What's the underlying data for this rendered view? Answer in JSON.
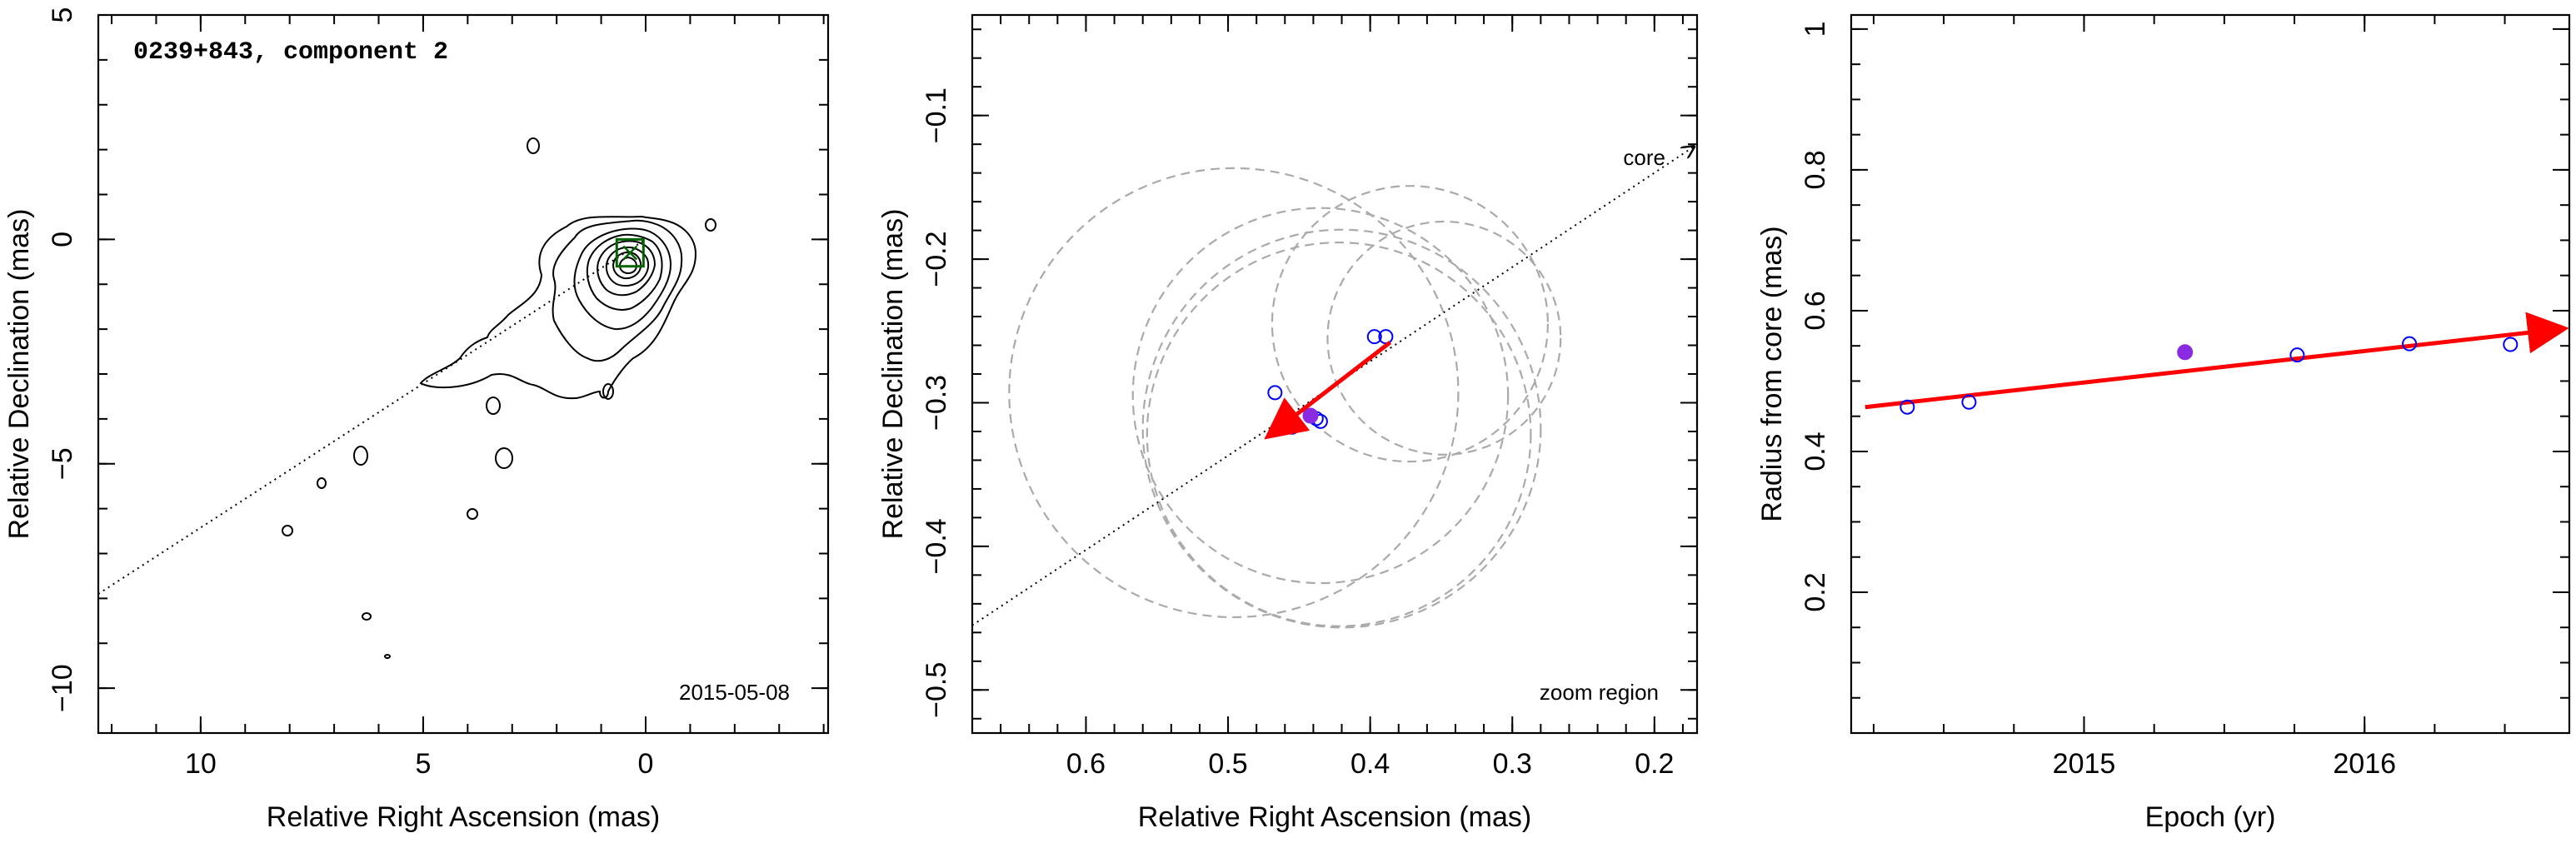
{
  "colors": {
    "arrow": "#ff0000",
    "open_marker": "#0000ff",
    "filled_marker": "#8a2be2",
    "circle": "#aaaaaa",
    "box": "#006400"
  },
  "chart_data": [
    {
      "type": "contour",
      "title": "0239+843, component 2",
      "date_label": "2015-05-08",
      "xlabel": "Relative Right Ascension (mas)",
      "ylabel": "Relative Declination (mas)",
      "xlim": [
        12.3,
        -4.1
      ],
      "ylim": [
        -11,
        5
      ],
      "xticks": [
        10,
        5,
        0
      ],
      "xtick_labels": [
        "10",
        "5",
        "0"
      ],
      "yticks": [
        5,
        0,
        -5,
        -10
      ],
      "ytick_labels": [
        "5",
        "0",
        "−5",
        "−10"
      ],
      "component_box": {
        "x": 0.35,
        "y": -0.3,
        "size": 0.6
      },
      "jet_axis": {
        "x1": 12.3,
        "y1": -7.9,
        "x2": 0.0,
        "y2": 0.0
      }
    },
    {
      "type": "scatter",
      "annotation_core": "core",
      "annotation_region": "zoom region",
      "xlabel": "Relative Right Ascension (mas)",
      "ylabel": "Relative Declination (mas)",
      "xlim": [
        0.68,
        0.17
      ],
      "ylim": [
        -0.53,
        -0.03
      ],
      "xticks": [
        0.6,
        0.5,
        0.4,
        0.3,
        0.2
      ],
      "xtick_labels": [
        "0.6",
        "0.5",
        "0.4",
        "0.3",
        "0.2"
      ],
      "yticks": [
        -0.1,
        -0.2,
        -0.3,
        -0.4,
        -0.5
      ],
      "ytick_labels": [
        "−0.1",
        "−0.2",
        "−0.3",
        "−0.4",
        "−0.5"
      ],
      "open_points": [
        {
          "x": 0.467,
          "y": -0.293
        },
        {
          "x": 0.455,
          "y": -0.317
        },
        {
          "x": 0.438,
          "y": -0.311
        },
        {
          "x": 0.435,
          "y": -0.313
        },
        {
          "x": 0.397,
          "y": -0.254
        },
        {
          "x": 0.389,
          "y": -0.254
        }
      ],
      "filled_points": [
        {
          "x": 0.442,
          "y": -0.309
        }
      ],
      "circles": [
        {
          "x": 0.496,
          "y": -0.293,
          "r": 0.158
        },
        {
          "x": 0.435,
          "y": -0.295,
          "r": 0.132
        },
        {
          "x": 0.42,
          "y": -0.318,
          "r": 0.14
        },
        {
          "x": 0.422,
          "y": -0.322,
          "r": 0.135
        },
        {
          "x": 0.372,
          "y": -0.245,
          "r": 0.097
        },
        {
          "x": 0.348,
          "y": -0.255,
          "r": 0.082
        }
      ],
      "motion_arrow": {
        "x1": 0.386,
        "y1": -0.258,
        "x2": 0.47,
        "y2": -0.322
      },
      "core_direction": {
        "x1": 0.68,
        "y1": -0.455,
        "x2": 0.17,
        "y2": -0.12
      }
    },
    {
      "type": "scatter",
      "xlabel": "Epoch (yr)",
      "ylabel": "Radius from core (mas)",
      "xlim": [
        2014.17,
        2016.73
      ],
      "ylim": [
        0.0,
        1.02
      ],
      "xticks": [
        2015,
        2016
      ],
      "xtick_labels": [
        "2015",
        "2016"
      ],
      "yticks": [
        0.2,
        0.4,
        0.6,
        0.8,
        1.0
      ],
      "ytick_labels": [
        "0.2",
        "0.4",
        "0.6",
        "0.8",
        "1"
      ],
      "open_points": [
        {
          "x": 2014.37,
          "y": 0.463
        },
        {
          "x": 2014.59,
          "y": 0.47
        },
        {
          "x": 2015.76,
          "y": 0.537
        },
        {
          "x": 2016.16,
          "y": 0.553
        },
        {
          "x": 2016.52,
          "y": 0.552
        }
      ],
      "filled_points": [
        {
          "x": 2015.36,
          "y": 0.541
        }
      ],
      "fit_arrow": {
        "x1": 2014.22,
        "y1": 0.463,
        "x2": 2016.7,
        "y2": 0.574
      }
    }
  ]
}
